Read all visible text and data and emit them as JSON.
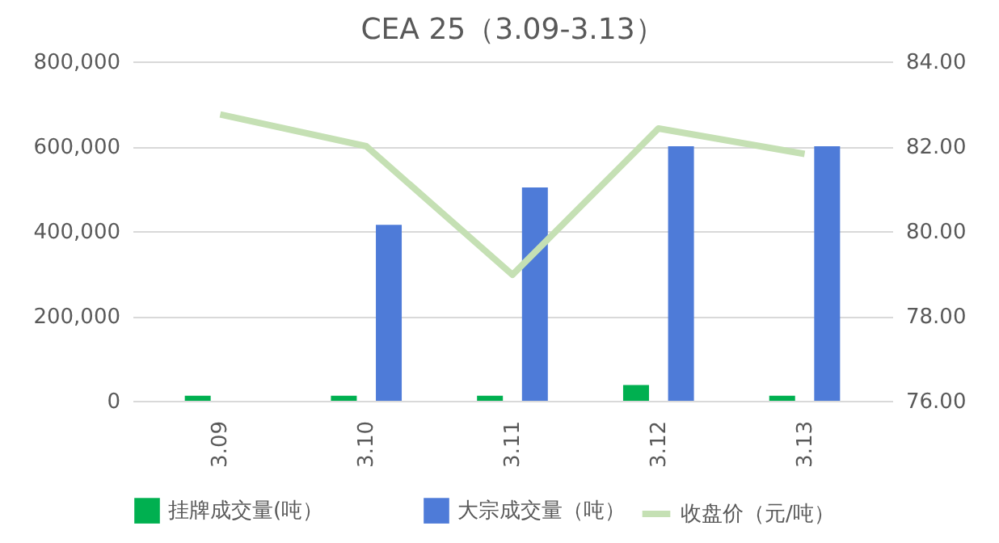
{
  "chart_data": {
    "type": "bar",
    "title": "CEA 25（3.09-3.13）",
    "categories": [
      "3.09",
      "3.10",
      "3.11",
      "3.12",
      "3.13"
    ],
    "series": [
      {
        "name": "挂牌成交量(吨）",
        "color": "#00b050",
        "values": [
          12000,
          12000,
          12000,
          37000,
          12000
        ]
      },
      {
        "name": "大宗成交量（吨）",
        "color": "#4e7bd8",
        "values": [
          0,
          415000,
          503000,
          600000,
          600000
        ]
      },
      {
        "name": "收盘价（元/吨）",
        "type": "line",
        "axis": "y2",
        "color": "#c5e0b4",
        "values": [
          82.75,
          82.0,
          78.97,
          82.42,
          81.82
        ]
      }
    ],
    "ylim": [
      0,
      800000
    ],
    "yticks": [
      {
        "value": 0,
        "label": "0"
      },
      {
        "value": 200000,
        "label": "200,000"
      },
      {
        "value": 400000,
        "label": "400,000"
      },
      {
        "value": 600000,
        "label": "600,000"
      },
      {
        "value": 800000,
        "label": "800,000"
      }
    ],
    "y2lim": [
      76,
      84
    ],
    "y2ticks": [
      {
        "value": 76,
        "label": "76.00"
      },
      {
        "value": 78,
        "label": "78.00"
      },
      {
        "value": 80,
        "label": "80.00"
      },
      {
        "value": 82,
        "label": "82.00"
      },
      {
        "value": 84,
        "label": "84.00"
      }
    ],
    "grid": "y",
    "legend": "bottom"
  }
}
